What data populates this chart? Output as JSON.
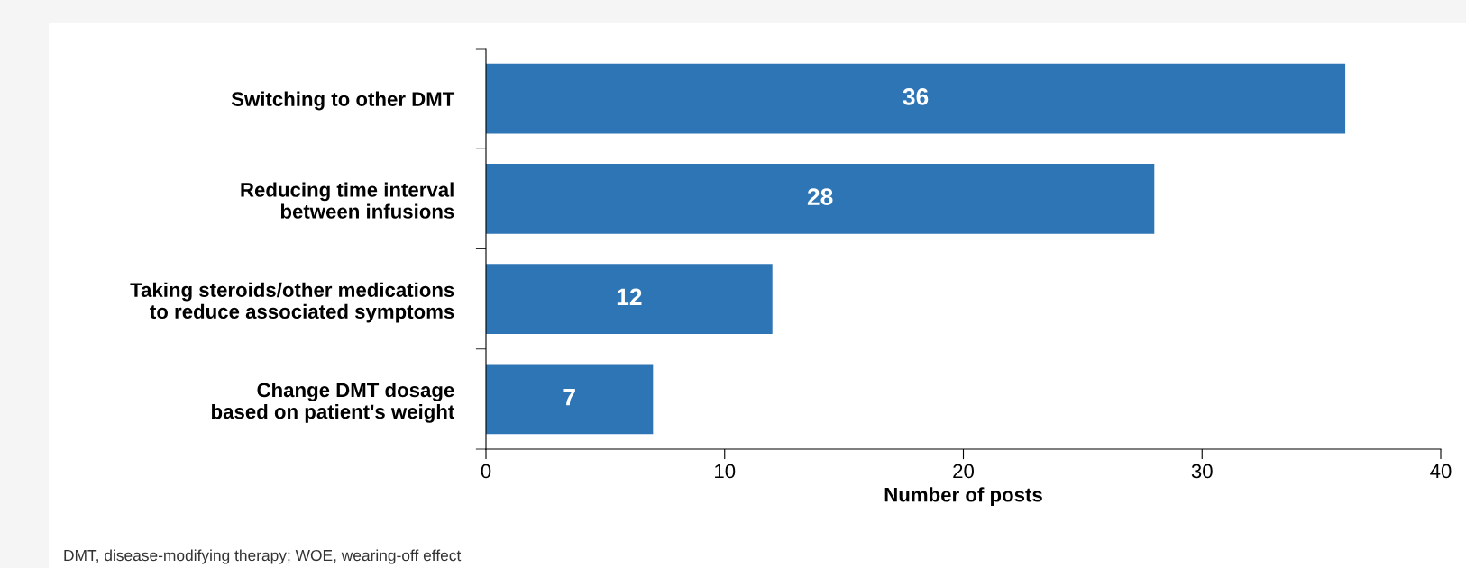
{
  "chart_data": {
    "type": "bar",
    "orientation": "horizontal",
    "categories": [
      "Switching to other DMT",
      "Reducing time interval\nbetween infusions",
      "Taking steroids/other medications\nto reduce associated symptoms",
      "Change DMT dosage\nbased on patient's weight"
    ],
    "values": [
      36,
      28,
      12,
      7
    ],
    "color": "#2e75b6",
    "data_labels": true,
    "xlim": [
      0,
      40
    ],
    "xticks": [
      0,
      10,
      20,
      30,
      40
    ],
    "xlabel": "Number of posts",
    "grid": false,
    "annotations": [
      "DMT, disease-modifying therapy; WOE, wearing-off effect"
    ]
  }
}
